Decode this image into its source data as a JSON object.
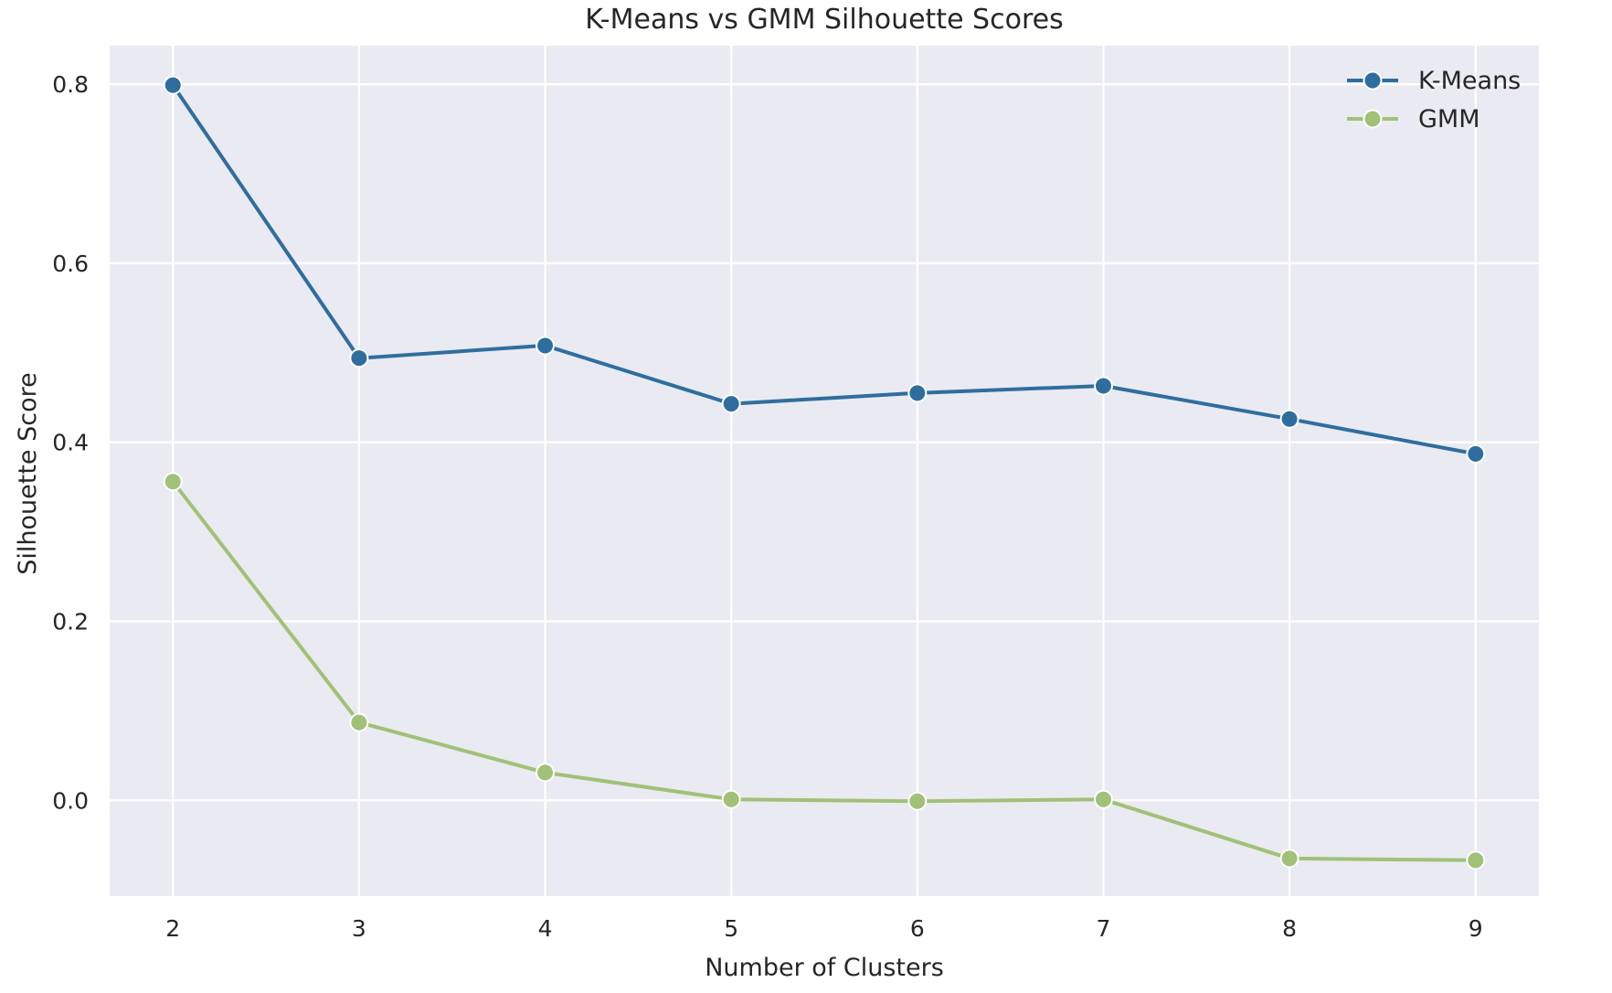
{
  "chart_data": {
    "type": "line",
    "title": "K-Means vs GMM Silhouette Scores",
    "xlabel": "Number of Clusters",
    "ylabel": "Silhouette Score",
    "x": [
      2,
      3,
      4,
      5,
      6,
      7,
      8,
      9
    ],
    "xlim": [
      1.66,
      9.34
    ],
    "ylim": [
      -0.107,
      0.843
    ],
    "yticks": [
      0.0,
      0.2,
      0.4,
      0.6,
      0.8
    ],
    "ytick_labels": [
      "0.0",
      "0.2",
      "0.4",
      "0.6",
      "0.8"
    ],
    "xticks": [
      2,
      3,
      4,
      5,
      6,
      7,
      8,
      9
    ],
    "xtick_labels": [
      "2",
      "3",
      "4",
      "5",
      "6",
      "7",
      "8",
      "9"
    ],
    "grid": true,
    "legend_position": "top-right",
    "series": [
      {
        "name": "K-Means",
        "color": "#2e6e9f",
        "values": [
          0.799,
          0.494,
          0.508,
          0.443,
          0.455,
          0.463,
          0.426,
          0.387
        ]
      },
      {
        "name": "GMM",
        "color": "#a0c177",
        "values": [
          0.356,
          0.087,
          0.031,
          0.001,
          -0.001,
          0.001,
          -0.065,
          -0.067
        ]
      }
    ],
    "colors": {
      "plot_background": "#eaeaf2",
      "grid": "#ffffff",
      "text": "#262626"
    }
  }
}
